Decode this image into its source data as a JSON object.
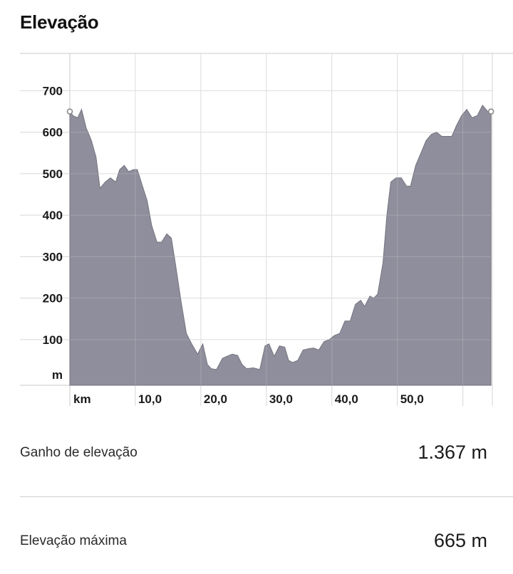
{
  "title": "Elevação",
  "chart_data": {
    "type": "area",
    "x_unit_label": "km",
    "y_unit_label": "m",
    "x_ticks": [
      10,
      20,
      30,
      40,
      50
    ],
    "x_tick_labels": [
      "10,0",
      "20,0",
      "30,0",
      "40,0",
      "50,0"
    ],
    "y_ticks": [
      100,
      200,
      300,
      400,
      500,
      600,
      700
    ],
    "y_tick_labels": [
      "100",
      "200",
      "300",
      "400",
      "500",
      "600",
      "700"
    ],
    "xlim": [
      0,
      64.5
    ],
    "ylim": [
      -10,
      790
    ],
    "grid": true,
    "fill_color": "#8f8e9c",
    "line_color": "#74737f",
    "x": [
      0,
      0.5,
      1.2,
      1.8,
      2.5,
      3.3,
      4.0,
      4.6,
      5.4,
      6.2,
      7.0,
      7.6,
      8.3,
      9.0,
      9.7,
      10.3,
      11.0,
      11.8,
      12.5,
      13.3,
      14.0,
      14.8,
      15.5,
      16.2,
      17.0,
      17.8,
      18.6,
      19.5,
      20.3,
      21.0,
      21.6,
      22.4,
      23.3,
      24.0,
      24.8,
      25.6,
      26.3,
      27.0,
      28.0,
      29.0,
      29.8,
      30.4,
      31.2,
      32.0,
      32.8,
      33.4,
      34.0,
      34.8,
      35.6,
      36.4,
      37.2,
      38.0,
      38.8,
      39.6,
      40.4,
      41.2,
      42.0,
      42.8,
      43.6,
      44.4,
      45.0,
      45.8,
      46.4,
      47.0,
      47.8,
      48.4,
      49.0,
      49.8,
      50.6,
      51.4,
      52.0,
      52.8,
      53.6,
      54.4,
      55.2,
      56.0,
      56.8,
      57.5,
      58.3,
      59.0,
      59.8,
      60.6,
      61.4,
      62.2,
      63.0,
      63.8,
      64.3
    ],
    "y": [
      650,
      640,
      635,
      655,
      610,
      580,
      540,
      465,
      480,
      490,
      480,
      510,
      520,
      505,
      510,
      510,
      475,
      435,
      375,
      335,
      335,
      355,
      345,
      275,
      190,
      115,
      90,
      65,
      90,
      40,
      30,
      28,
      55,
      60,
      65,
      62,
      40,
      30,
      32,
      28,
      85,
      90,
      60,
      85,
      82,
      50,
      45,
      50,
      75,
      78,
      80,
      75,
      95,
      100,
      110,
      115,
      145,
      145,
      185,
      195,
      180,
      205,
      200,
      210,
      285,
      400,
      480,
      490,
      490,
      470,
      470,
      520,
      550,
      580,
      595,
      600,
      590,
      590,
      590,
      615,
      640,
      655,
      635,
      640,
      665,
      650,
      650
    ],
    "max_elevation": 665
  },
  "stats": {
    "gain_label": "Ganho de elevação",
    "gain_value": "1.367 m",
    "max_label": "Elevação máxima",
    "max_value": "665 m"
  }
}
